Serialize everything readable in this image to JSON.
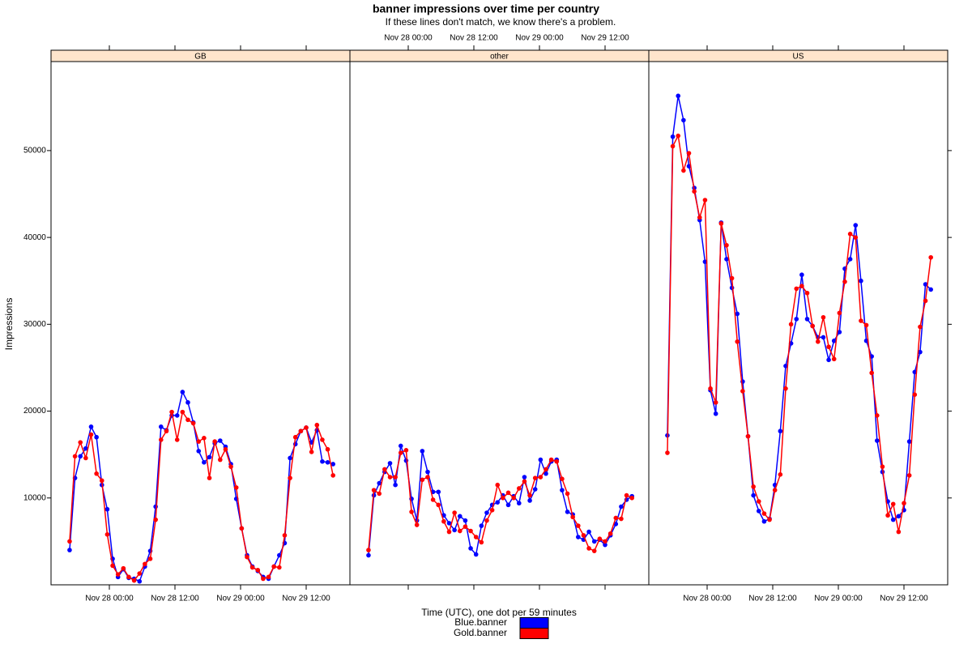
{
  "chart_data": {
    "type": "line",
    "title": "banner impressions over time per country",
    "subtitle": "If these lines don't match, we know there's a problem.",
    "xlabel": "Time (UTC), one dot per 59 minutes",
    "ylabel": "Impressions",
    "x": [
      "Nov 27 16:44",
      "Nov 27 17:43",
      "Nov 27 18:42",
      "Nov 27 19:41",
      "Nov 27 20:40",
      "Nov 27 21:39",
      "Nov 27 22:38",
      "Nov 27 23:37",
      "Nov 28 00:36",
      "Nov 28 01:35",
      "Nov 28 02:34",
      "Nov 28 03:33",
      "Nov 28 04:32",
      "Nov 28 05:31",
      "Nov 28 06:30",
      "Nov 28 07:29",
      "Nov 28 08:28",
      "Nov 28 09:27",
      "Nov 28 10:26",
      "Nov 28 11:25",
      "Nov 28 12:24",
      "Nov 28 13:23",
      "Nov 28 14:22",
      "Nov 28 15:21",
      "Nov 28 16:20",
      "Nov 28 17:19",
      "Nov 28 18:18",
      "Nov 28 19:17",
      "Nov 28 20:16",
      "Nov 28 21:15",
      "Nov 28 22:14",
      "Nov 28 23:13",
      "Nov 29 00:12",
      "Nov 29 01:11",
      "Nov 29 02:10",
      "Nov 29 03:09",
      "Nov 29 04:08",
      "Nov 29 05:07",
      "Nov 29 06:06",
      "Nov 29 07:05",
      "Nov 29 08:04",
      "Nov 29 09:03",
      "Nov 29 10:02",
      "Nov 29 11:01",
      "Nov 29 12:00",
      "Nov 29 12:59",
      "Nov 29 13:58",
      "Nov 29 14:57",
      "Nov 29 15:56",
      "Nov 29 16:55"
    ],
    "xlim": [
      "Nov 27 13:20",
      "Nov 29 20:00"
    ],
    "xticks": [
      "Nov 28 00:00",
      "Nov 28 12:00",
      "Nov 29 00:00",
      "Nov 29 12:00"
    ],
    "ylim": [
      0,
      60250
    ],
    "yticks": [
      10000,
      20000,
      30000,
      40000,
      50000
    ],
    "panels": [
      {
        "title": "GB",
        "series": [
          {
            "name": "Blue.banner",
            "color": "#0000ff",
            "values": [
              4000,
              12300,
              14800,
              15700,
              18200,
              17000,
              11500,
              8700,
              3000,
              900,
              1800,
              800,
              700,
              400,
              2100,
              3900,
              9000,
              18200,
              17800,
              19500,
              19500,
              22200,
              21000,
              18700,
              15400,
              14100,
              14700,
              16300,
              16600,
              15900,
              13900,
              9900,
              6500,
              3400,
              2100,
              1600,
              900,
              700,
              2100,
              3400,
              4800,
              14600,
              16200,
              17700,
              18100,
              16400,
              17800,
              14200,
              14100,
              13900
            ]
          },
          {
            "name": "Gold.banner",
            "color": "#ff0000",
            "values": [
              5000,
              14800,
              16400,
              14600,
              17300,
              12800,
              12000,
              5800,
              2200,
              1200,
              1900,
              900,
              500,
              1300,
              2400,
              3000,
              7500,
              16700,
              17700,
              19900,
              16700,
              19900,
              19000,
              18600,
              16500,
              16900,
              12300,
              16500,
              14400,
              15600,
              13600,
              11200,
              6500,
              3200,
              2000,
              1700,
              700,
              900,
              2100,
              2000,
              5700,
              12300,
              17000,
              17700,
              18100,
              15300,
              18400,
              16700,
              15600,
              12600
            ]
          }
        ]
      },
      {
        "title": "other",
        "series": [
          {
            "name": "Blue.banner",
            "color": "#0000ff",
            "values": [
              3400,
              10300,
              11700,
              13000,
              14000,
              11500,
              16000,
              14300,
              9900,
              7400,
              15400,
              13000,
              10700,
              10700,
              8000,
              7100,
              6300,
              7900,
              7400,
              4200,
              3500,
              6800,
              8300,
              9200,
              9500,
              10300,
              9200,
              10200,
              9400,
              12400,
              9700,
              11000,
              14400,
              12800,
              14200,
              14400,
              10900,
              8400,
              8100,
              5500,
              5200,
              6100,
              5000,
              5200,
              4600,
              5700,
              7000,
              9000,
              9800,
              10200
            ]
          },
          {
            "name": "Gold.banner",
            "color": "#ff0000",
            "values": [
              4000,
              10900,
              10500,
              13300,
              12400,
              12400,
              15200,
              15500,
              8400,
              6900,
              12100,
              12400,
              9800,
              9200,
              7300,
              6100,
              8300,
              6200,
              6700,
              6200,
              5500,
              4900,
              7400,
              8600,
              11500,
              10000,
              10600,
              10000,
              11100,
              11900,
              10300,
              12300,
              12400,
              13300,
              14400,
              14200,
              12200,
              10500,
              7800,
              6800,
              5700,
              4200,
              3900,
              5300,
              5000,
              5900,
              7700,
              7600,
              10300,
              10000
            ]
          }
        ]
      },
      {
        "title": "US",
        "series": [
          {
            "name": "Blue.banner",
            "color": "#0000ff",
            "values": [
              17200,
              51600,
              56300,
              53500,
              48200,
              45700,
              42000,
              37200,
              22400,
              19700,
              41700,
              37500,
              34200,
              31200,
              23400,
              17100,
              10300,
              8500,
              7300,
              7600,
              11500,
              17700,
              25200,
              27800,
              30600,
              35700,
              30600,
              29800,
              28500,
              28500,
              25900,
              28100,
              29100,
              36400,
              37500,
              41400,
              35000,
              28100,
              26300,
              16600,
              13000,
              9600,
              7500,
              7900,
              8600,
              16500,
              24500,
              26800,
              34600,
              34000
            ]
          },
          {
            "name": "Gold.banner",
            "color": "#ff0000",
            "values": [
              15200,
              50500,
              51700,
              47700,
              49700,
              45300,
              42300,
              44300,
              22600,
              21000,
              41600,
              39100,
              35300,
              28000,
              22300,
              17100,
              11300,
              9600,
              8200,
              7500,
              10900,
              12700,
              22600,
              30000,
              34100,
              34400,
              33600,
              29800,
              28000,
              30800,
              27400,
              26000,
              31300,
              34900,
              40400,
              40000,
              30400,
              29900,
              24400,
              19500,
              13600,
              8000,
              9300,
              6100,
              9400,
              12600,
              21900,
              29700,
              32700,
              37700
            ]
          }
        ]
      }
    ]
  }
}
